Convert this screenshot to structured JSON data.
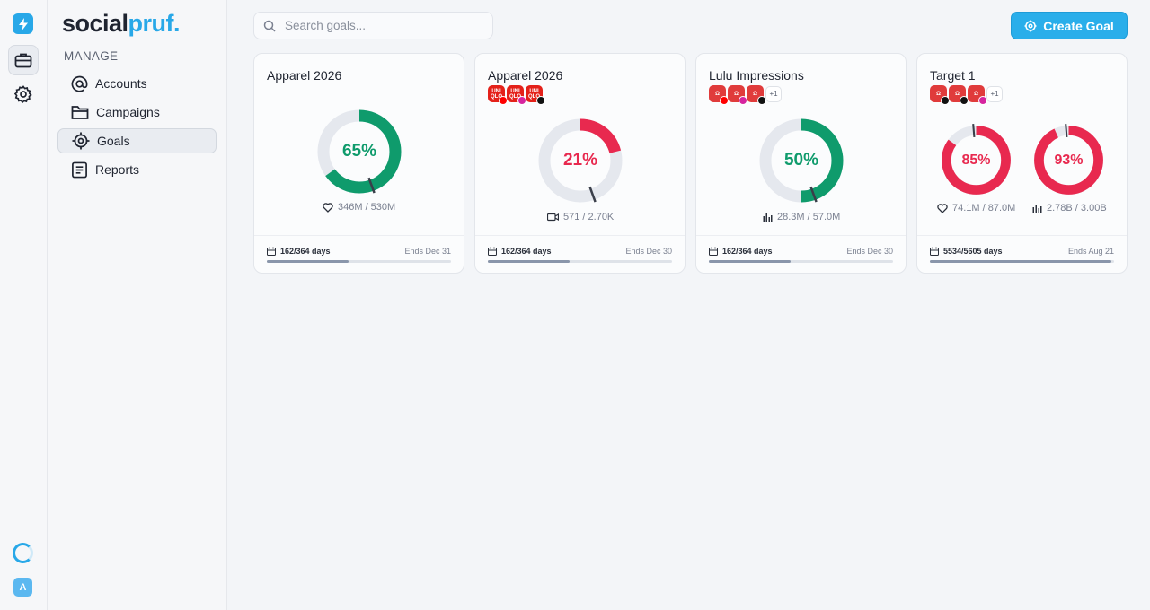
{
  "app": {
    "logo_part1": "social",
    "logo_part2": "pruf."
  },
  "sidebar": {
    "section_label": "MANAGE",
    "items": [
      {
        "label": "Accounts",
        "icon": "at-sign-icon"
      },
      {
        "label": "Campaigns",
        "icon": "folder-icon"
      },
      {
        "label": "Goals",
        "icon": "target-icon",
        "active": true
      },
      {
        "label": "Reports",
        "icon": "report-icon"
      }
    ]
  },
  "rail": {
    "user_initial": "A"
  },
  "search": {
    "placeholder": "Search goals..."
  },
  "header": {
    "create_label": "Create Goal"
  },
  "colors": {
    "accent": "#28a8e8",
    "success": "#0f9b6c",
    "danger": "#e8294f",
    "track": "#e5e8ee"
  },
  "goals": [
    {
      "title": "Apparel 2026",
      "badges": [],
      "metrics": [
        {
          "pct": "65%",
          "value": 0.65,
          "color": "success",
          "label": "346M / 530M",
          "icon": "heart-icon"
        }
      ],
      "days": "162/364 days",
      "ends": "Ends Dec 31",
      "progress": 0.445
    },
    {
      "title": "Apparel 2026",
      "badges": [
        {
          "brand": "uniqlo",
          "text": "UNI QLO",
          "platform": "yt"
        },
        {
          "brand": "uniqlo",
          "text": "UNI QLO",
          "platform": "ig"
        },
        {
          "brand": "uniqlo",
          "text": "UNI QLO",
          "platform": "tt"
        }
      ],
      "metrics": [
        {
          "pct": "21%",
          "value": 0.21,
          "color": "danger",
          "label": "571 / 2.70K",
          "icon": "video-icon"
        }
      ],
      "days": "162/364 days",
      "ends": "Ends Dec 30",
      "progress": 0.445
    },
    {
      "title": "Lulu Impressions",
      "badges": [
        {
          "brand": "lulu",
          "text": "",
          "platform": "yt"
        },
        {
          "brand": "lulu",
          "text": "",
          "platform": "ig"
        },
        {
          "brand": "lulu",
          "text": "",
          "platform": "tt"
        }
      ],
      "more": "+1",
      "metrics": [
        {
          "pct": "50%",
          "value": 0.5,
          "color": "success",
          "label": "28.3M / 57.0M",
          "icon": "bar-chart-icon"
        }
      ],
      "days": "162/364 days",
      "ends": "Ends Dec 30",
      "progress": 0.445
    },
    {
      "title": "Target 1",
      "badges": [
        {
          "brand": "lulu",
          "text": "",
          "platform": "tt"
        },
        {
          "brand": "lulu",
          "text": "",
          "platform": "tt"
        },
        {
          "brand": "lulu",
          "text": "",
          "platform": "ig"
        }
      ],
      "more": "+1",
      "metrics": [
        {
          "pct": "85%",
          "value": 0.85,
          "color": "danger",
          "label": "74.1M / 87.0M",
          "icon": "heart-icon"
        },
        {
          "pct": "93%",
          "value": 0.93,
          "color": "danger",
          "label": "2.78B / 3.00B",
          "icon": "bar-chart-icon"
        }
      ],
      "days": "5534/5605 days",
      "ends": "Ends Aug 21",
      "progress": 0.987
    }
  ]
}
